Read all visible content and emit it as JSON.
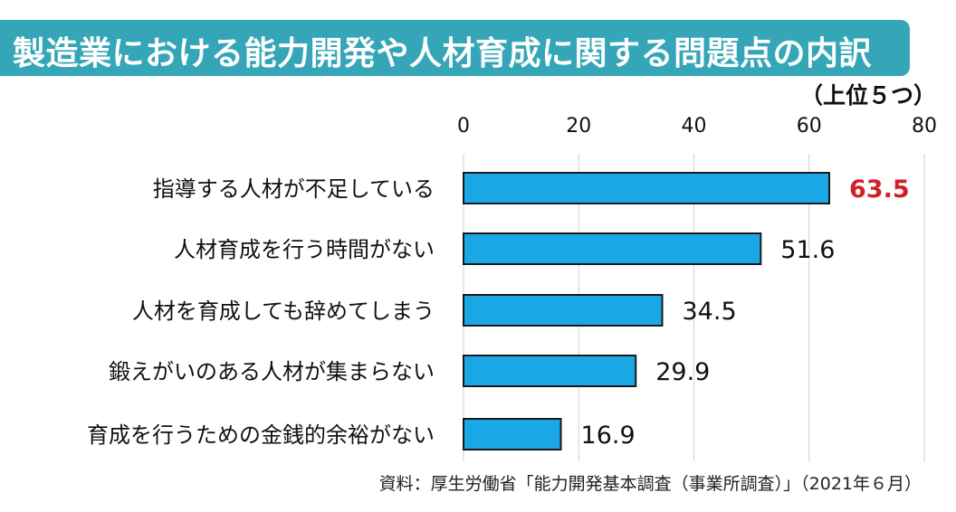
{
  "title": "製造業における能力開発や人材育成に関する問題点の内訳",
  "unit_note": "（上位５つ）",
  "source": "資料：厚生労働省「能力開発基本調査（事業所調査）」（2021年６月）",
  "colors": {
    "title_bg": "#35a6b7",
    "bar_fill": "#1aa7e6",
    "highlight_label": "#d0202a",
    "grid": "#cfcfcf"
  },
  "chart_data": {
    "type": "bar",
    "orientation": "horizontal",
    "categories": [
      "指導する人材が不足している",
      "人材育成を行う時間がない",
      "人材を育成しても辞めてしまう",
      "鍛えがいのある人材が集まらない",
      "育成を行うための金銭的余裕がない"
    ],
    "values": [
      63.5,
      51.6,
      34.5,
      29.9,
      16.9
    ],
    "value_labels": [
      "63.5",
      "51.6",
      "34.5",
      "29.9",
      "16.9"
    ],
    "highlight_index": 0,
    "xlim": [
      0,
      80
    ],
    "x_ticks": [
      0,
      20,
      40,
      60,
      80
    ],
    "x_tick_labels": [
      "0",
      "20",
      "40",
      "60",
      "80"
    ],
    "axis_position": "top",
    "grid": true
  }
}
